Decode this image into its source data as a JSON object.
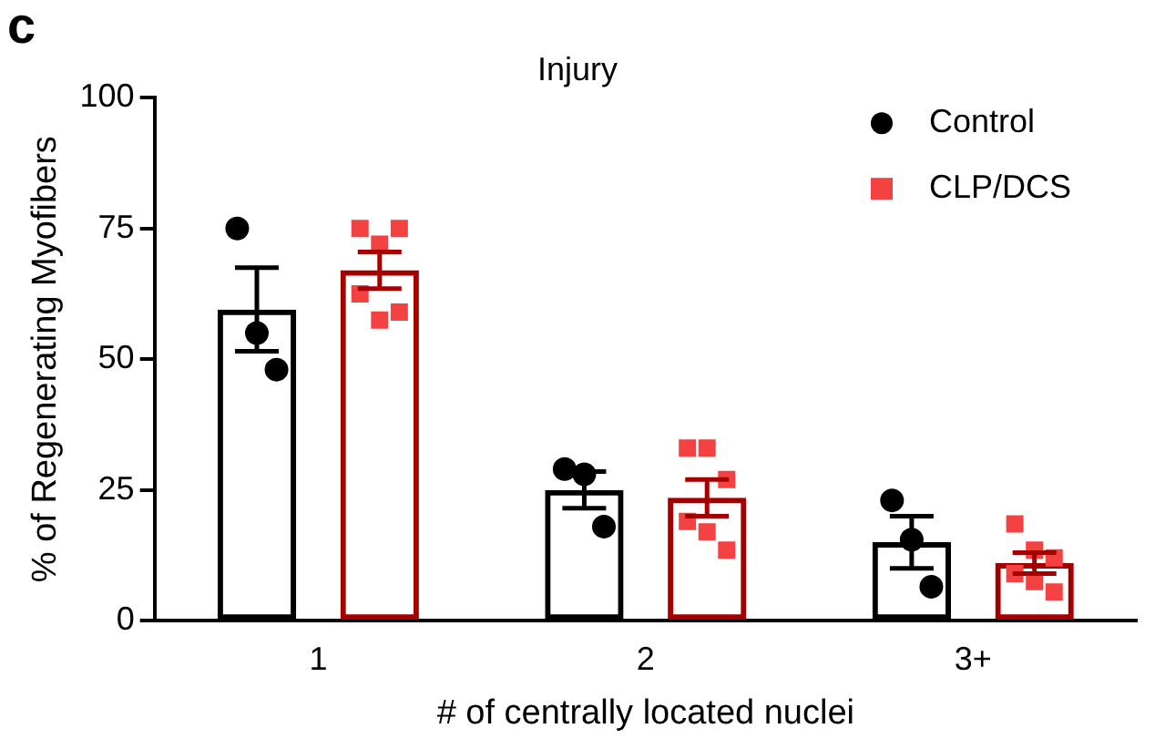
{
  "chart_data": {
    "type": "bar",
    "title": "Injury",
    "xlabel": "# of centrally located nuclei",
    "ylabel": "% of Regenerating Myofibers",
    "annotations": [
      "c"
    ],
    "categories": [
      "1",
      "2",
      "3+"
    ],
    "series": [
      {
        "color": "#000000",
        "values": [
          59.5,
          25,
          15
        ],
        "errors": [
          8,
          3.5,
          5
        ]
      },
      {
        "color": "#a50000",
        "values": [
          67,
          23.5,
          11
        ],
        "errors": [
          3.5,
          3.5,
          2
        ]
      },
      {
        "type": "scatter",
        "name": "Control",
        "color": "#000000",
        "marker": "circle",
        "x": [
          "1",
          "1",
          "1",
          "2",
          "2",
          "2",
          "3+",
          "3+",
          "3+"
        ],
        "values": [
          75,
          55,
          48,
          29,
          28,
          18,
          23,
          15.5,
          6.5
        ]
      },
      {
        "type": "scatter",
        "name": "CLP/DCS",
        "color": "#f44242",
        "marker": "square",
        "x": [
          "1",
          "1",
          "1",
          "1",
          "1",
          "1",
          "2",
          "2",
          "2",
          "2",
          "2",
          "2",
          "3+",
          "3+",
          "3+",
          "3+",
          "3+",
          "3+"
        ],
        "values": [
          75,
          72,
          75,
          62.5,
          57.5,
          59,
          33,
          33,
          27,
          19,
          17,
          13.5,
          18.5,
          13.5,
          12,
          9,
          7.5,
          5.5
        ]
      }
    ],
    "ylim": [
      0,
      100
    ],
    "yticks": [
      0,
      25,
      50,
      75,
      100
    ],
    "grid": false,
    "legend": "top right"
  }
}
